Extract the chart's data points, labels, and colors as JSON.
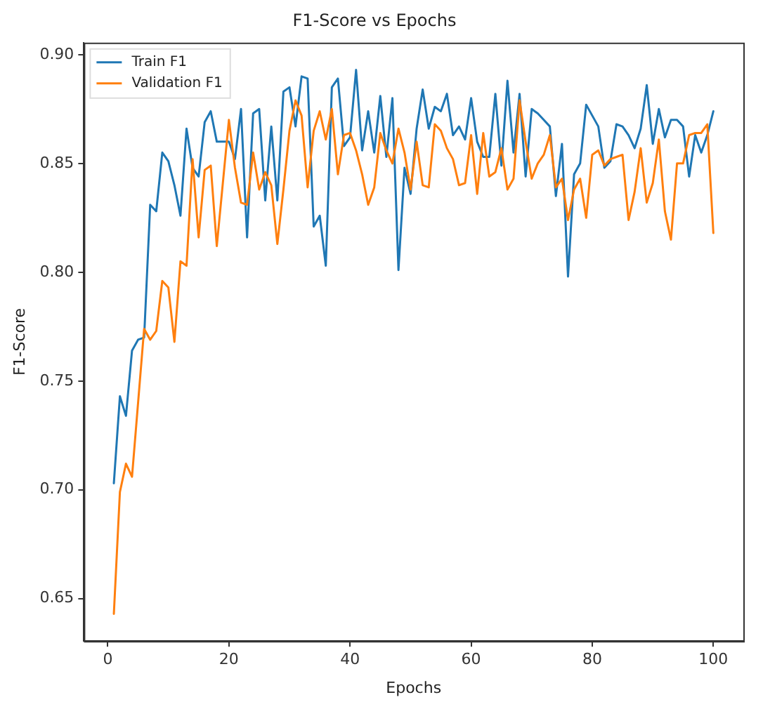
{
  "chart_data": {
    "type": "line",
    "title": "F1-Score vs Epochs",
    "xlabel": "Epochs",
    "ylabel": "F1-Score",
    "x": [
      1,
      2,
      3,
      4,
      5,
      6,
      7,
      8,
      9,
      10,
      11,
      12,
      13,
      14,
      15,
      16,
      17,
      18,
      19,
      20,
      21,
      22,
      23,
      24,
      25,
      26,
      27,
      28,
      29,
      30,
      31,
      32,
      33,
      34,
      35,
      36,
      37,
      38,
      39,
      40,
      41,
      42,
      43,
      44,
      45,
      46,
      47,
      48,
      49,
      50,
      51,
      52,
      53,
      54,
      55,
      56,
      57,
      58,
      59,
      60,
      61,
      62,
      63,
      64,
      65,
      66,
      67,
      68,
      69,
      70,
      71,
      72,
      73,
      74,
      75,
      76,
      77,
      78,
      79,
      80,
      81,
      82,
      83,
      84,
      85,
      86,
      87,
      88,
      89,
      90,
      91,
      92,
      93,
      94,
      95,
      96,
      97,
      98,
      99,
      100
    ],
    "series": [
      {
        "name": "Train F1",
        "color": "#1f77b4",
        "values": [
          0.703,
          0.743,
          0.734,
          0.764,
          0.769,
          0.77,
          0.831,
          0.828,
          0.855,
          0.851,
          0.84,
          0.826,
          0.866,
          0.848,
          0.844,
          0.869,
          0.874,
          0.86,
          0.86,
          0.86,
          0.852,
          0.875,
          0.816,
          0.873,
          0.875,
          0.833,
          0.867,
          0.833,
          0.883,
          0.885,
          0.867,
          0.89,
          0.889,
          0.821,
          0.826,
          0.803,
          0.885,
          0.889,
          0.858,
          0.862,
          0.893,
          0.856,
          0.874,
          0.855,
          0.881,
          0.853,
          0.88,
          0.801,
          0.848,
          0.836,
          0.866,
          0.884,
          0.866,
          0.876,
          0.874,
          0.882,
          0.863,
          0.867,
          0.861,
          0.88,
          0.86,
          0.853,
          0.853,
          0.882,
          0.849,
          0.888,
          0.855,
          0.882,
          0.844,
          0.875,
          0.873,
          0.87,
          0.867,
          0.835,
          0.859,
          0.798,
          0.845,
          0.85,
          0.877,
          0.872,
          0.867,
          0.848,
          0.851,
          0.868,
          0.867,
          0.863,
          0.857,
          0.866,
          0.886,
          0.859,
          0.875,
          0.862,
          0.87,
          0.87,
          0.867,
          0.844,
          0.863,
          0.855,
          0.863,
          0.874
        ]
      },
      {
        "name": "Validation F1",
        "color": "#ff7f0e",
        "values": [
          0.643,
          0.699,
          0.712,
          0.706,
          0.74,
          0.774,
          0.769,
          0.773,
          0.796,
          0.793,
          0.768,
          0.805,
          0.803,
          0.852,
          0.816,
          0.847,
          0.849,
          0.812,
          0.841,
          0.87,
          0.848,
          0.832,
          0.831,
          0.855,
          0.838,
          0.846,
          0.84,
          0.813,
          0.838,
          0.865,
          0.879,
          0.872,
          0.839,
          0.865,
          0.874,
          0.861,
          0.875,
          0.845,
          0.863,
          0.864,
          0.856,
          0.845,
          0.831,
          0.839,
          0.864,
          0.856,
          0.85,
          0.866,
          0.855,
          0.838,
          0.86,
          0.84,
          0.839,
          0.868,
          0.865,
          0.857,
          0.852,
          0.84,
          0.841,
          0.863,
          0.836,
          0.864,
          0.844,
          0.846,
          0.857,
          0.838,
          0.843,
          0.879,
          0.86,
          0.843,
          0.85,
          0.854,
          0.863,
          0.839,
          0.843,
          0.824,
          0.838,
          0.843,
          0.825,
          0.854,
          0.856,
          0.849,
          0.852,
          0.853,
          0.854,
          0.824,
          0.837,
          0.857,
          0.832,
          0.841,
          0.861,
          0.828,
          0.815,
          0.85,
          0.85,
          0.863,
          0.864,
          0.864,
          0.868,
          0.818
        ]
      }
    ],
    "xlim": [
      -3.95,
      104.95
    ],
    "xticks": [
      0,
      20,
      40,
      60,
      80,
      100
    ],
    "ylim": [
      0.6305,
      0.9055
    ],
    "yticks": [
      {
        "value": 0.65,
        "label": "0.65"
      },
      {
        "value": 0.7,
        "label": "0.70"
      },
      {
        "value": 0.75,
        "label": "0.75"
      },
      {
        "value": 0.8,
        "label": "0.80"
      },
      {
        "value": 0.85,
        "label": "0.85"
      },
      {
        "value": 0.9,
        "label": "0.90"
      }
    ],
    "grid": false,
    "legend": "top left",
    "marker": "none",
    "line_style": "solid"
  }
}
